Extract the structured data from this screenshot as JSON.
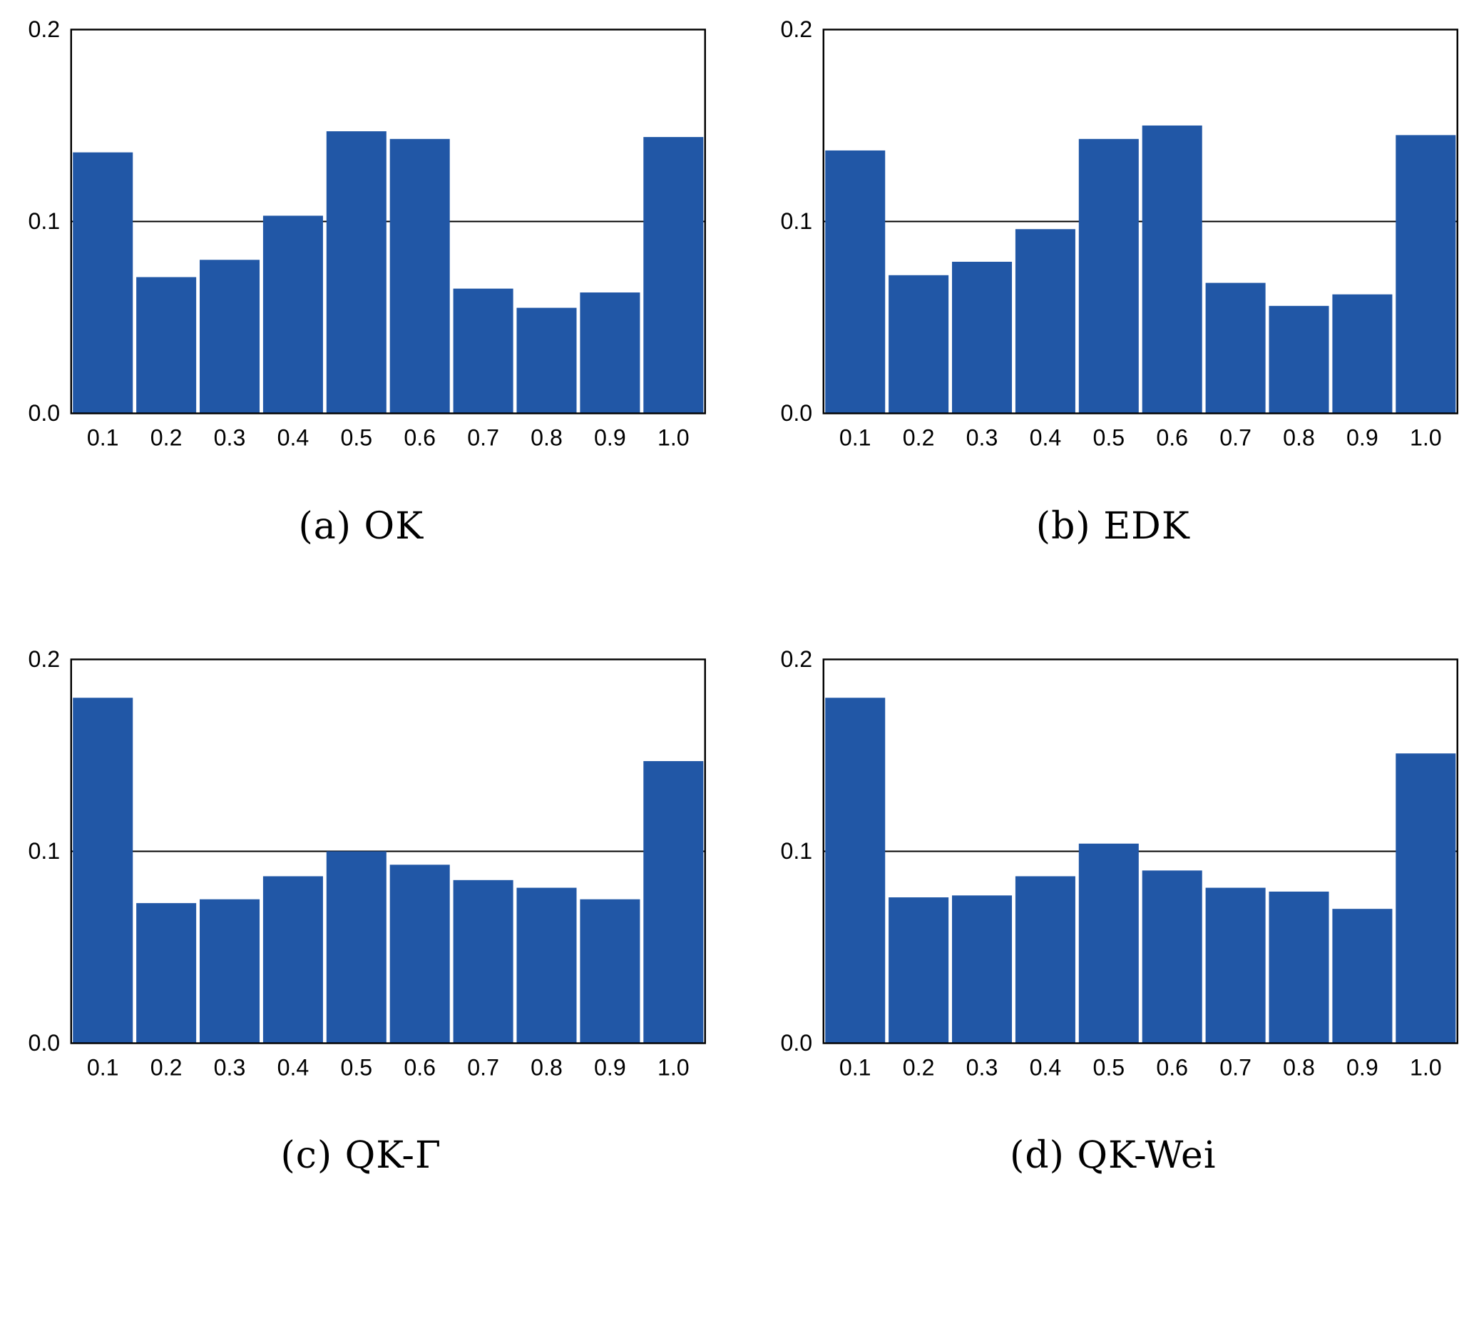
{
  "figure": {
    "background": "#ffffff",
    "bar_color": "#2157a6",
    "axis_color": "#000000"
  },
  "chart_data": [
    {
      "type": "bar",
      "caption": "(a) OK",
      "categories": [
        "0.1",
        "0.2",
        "0.3",
        "0.4",
        "0.5",
        "0.6",
        "0.7",
        "0.8",
        "0.9",
        "1.0"
      ],
      "values": [
        0.136,
        0.071,
        0.08,
        0.103,
        0.147,
        0.143,
        0.065,
        0.055,
        0.063,
        0.144
      ],
      "xlabel": "",
      "ylabel": "",
      "ylim": [
        0,
        0.2
      ],
      "yticks": [
        "0.0",
        "0.1",
        "0.2"
      ],
      "refline": 0.1,
      "grid": false,
      "legend": null,
      "bar_color": "#2157a6",
      "axis_color": "#000000"
    },
    {
      "type": "bar",
      "caption": "(b) EDK",
      "categories": [
        "0.1",
        "0.2",
        "0.3",
        "0.4",
        "0.5",
        "0.6",
        "0.7",
        "0.8",
        "0.9",
        "1.0"
      ],
      "values": [
        0.137,
        0.072,
        0.079,
        0.096,
        0.143,
        0.15,
        0.068,
        0.056,
        0.062,
        0.145
      ],
      "xlabel": "",
      "ylabel": "",
      "ylim": [
        0,
        0.2
      ],
      "yticks": [
        "0.0",
        "0.1",
        "0.2"
      ],
      "refline": 0.1,
      "grid": false,
      "legend": null,
      "bar_color": "#2157a6",
      "axis_color": "#000000"
    },
    {
      "type": "bar",
      "caption": "(c) QK-Γ",
      "categories": [
        "0.1",
        "0.2",
        "0.3",
        "0.4",
        "0.5",
        "0.6",
        "0.7",
        "0.8",
        "0.9",
        "1.0"
      ],
      "values": [
        0.18,
        0.073,
        0.075,
        0.087,
        0.1,
        0.093,
        0.085,
        0.081,
        0.075,
        0.147
      ],
      "xlabel": "",
      "ylabel": "",
      "ylim": [
        0,
        0.2
      ],
      "yticks": [
        "0.0",
        "0.1",
        "0.2"
      ],
      "refline": 0.1,
      "grid": false,
      "legend": null,
      "bar_color": "#2157a6",
      "axis_color": "#000000"
    },
    {
      "type": "bar",
      "caption": "(d) QK-Wei",
      "categories": [
        "0.1",
        "0.2",
        "0.3",
        "0.4",
        "0.5",
        "0.6",
        "0.7",
        "0.8",
        "0.9",
        "1.0"
      ],
      "values": [
        0.18,
        0.076,
        0.077,
        0.087,
        0.104,
        0.09,
        0.081,
        0.079,
        0.07,
        0.151
      ],
      "xlabel": "",
      "ylabel": "",
      "ylim": [
        0,
        0.2
      ],
      "yticks": [
        "0.0",
        "0.1",
        "0.2"
      ],
      "refline": 0.1,
      "grid": false,
      "legend": null,
      "bar_color": "#2157a6",
      "axis_color": "#000000"
    }
  ]
}
